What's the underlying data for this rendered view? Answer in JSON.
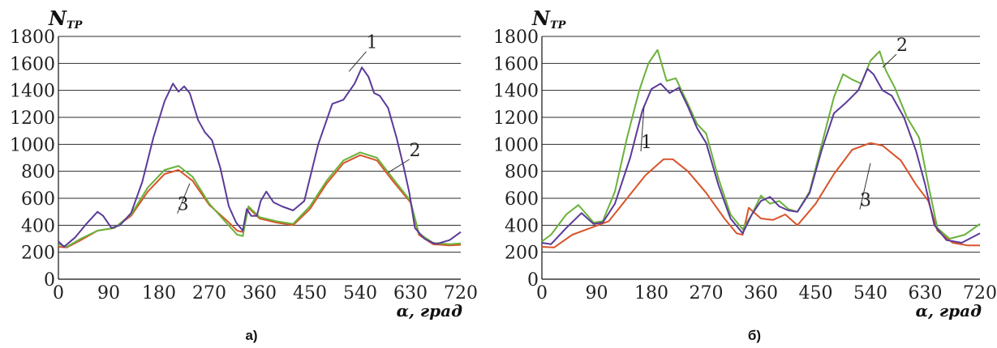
{
  "chart_data": [
    {
      "type": "line",
      "panel_label": "а)",
      "ylabel_main": "N",
      "ylabel_sub": "ТР",
      "xlabel": "α, град",
      "xlim": [
        0,
        720
      ],
      "ylim": [
        0,
        1800
      ],
      "grid": true,
      "xticks": [
        0,
        90,
        180,
        270,
        360,
        450,
        540,
        630,
        720
      ],
      "yticks": [
        0,
        200,
        400,
        600,
        800,
        1000,
        1200,
        1400,
        1600,
        1800
      ],
      "colors": {
        "1": "#5b3a99",
        "2": "#6ab23a",
        "3": "#d9542a"
      },
      "series": [
        {
          "label": "1",
          "x": [
            0,
            10,
            30,
            50,
            70,
            80,
            95,
            110,
            130,
            150,
            170,
            190,
            205,
            215,
            225,
            235,
            250,
            262,
            275,
            290,
            305,
            318,
            330,
            337,
            345,
            355,
            362,
            372,
            385,
            400,
            420,
            440,
            465,
            490,
            510,
            530,
            543,
            555,
            565,
            575,
            590,
            605,
            618,
            628,
            638,
            655,
            675,
            700,
            720
          ],
          "y": [
            280,
            240,
            310,
            410,
            500,
            470,
            380,
            400,
            490,
            720,
            1050,
            1320,
            1450,
            1390,
            1430,
            1380,
            1180,
            1090,
            1030,
            820,
            540,
            420,
            360,
            520,
            470,
            470,
            580,
            650,
            570,
            540,
            510,
            580,
            1000,
            1300,
            1330,
            1450,
            1570,
            1500,
            1380,
            1360,
            1270,
            1050,
            830,
            640,
            380,
            300,
            260,
            290,
            350
          ]
        },
        {
          "label": "2",
          "x": [
            0,
            15,
            40,
            70,
            100,
            130,
            160,
            190,
            215,
            240,
            270,
            300,
            320,
            330,
            340,
            360,
            390,
            420,
            450,
            480,
            510,
            540,
            570,
            600,
            630,
            645,
            670,
            700,
            720
          ],
          "y": [
            260,
            240,
            300,
            360,
            380,
            480,
            680,
            810,
            840,
            760,
            560,
            420,
            330,
            320,
            540,
            460,
            430,
            410,
            540,
            730,
            880,
            940,
            900,
            740,
            580,
            340,
            270,
            260,
            265
          ]
        },
        {
          "label": "3",
          "x": [
            0,
            15,
            40,
            70,
            100,
            130,
            160,
            190,
            215,
            240,
            270,
            300,
            320,
            330,
            340,
            360,
            390,
            420,
            450,
            480,
            510,
            540,
            570,
            600,
            630,
            645,
            670,
            700,
            720
          ],
          "y": [
            240,
            235,
            290,
            360,
            380,
            470,
            650,
            780,
            810,
            730,
            550,
            440,
            360,
            350,
            530,
            450,
            420,
            400,
            520,
            710,
            860,
            920,
            880,
            720,
            570,
            330,
            260,
            250,
            255
          ]
        }
      ],
      "annotations": [
        {
          "text": "1",
          "at_x": 520,
          "at_y": 1540,
          "label_x": 548,
          "label_y": 1700
        },
        {
          "text": "2",
          "at_x": 590,
          "at_y": 790,
          "label_x": 625,
          "label_y": 900
        },
        {
          "text": "3",
          "at_x": 235,
          "at_y": 710,
          "label_x": 210,
          "label_y": 500
        }
      ]
    },
    {
      "type": "line",
      "panel_label": "б)",
      "ylabel_main": "N",
      "ylabel_sub": "ТР",
      "xlabel": "α, град",
      "xlim": [
        0,
        720
      ],
      "ylim": [
        0,
        1800
      ],
      "grid": true,
      "xticks": [
        0,
        90,
        180,
        270,
        360,
        450,
        540,
        630,
        720
      ],
      "yticks": [
        0,
        200,
        400,
        600,
        800,
        1000,
        1200,
        1400,
        1600,
        1800
      ],
      "colors": {
        "1": "#5b3a99",
        "2": "#6ab23a",
        "3": "#d9542a"
      },
      "series": [
        {
          "label": "1",
          "x": [
            0,
            15,
            40,
            65,
            85,
            100,
            120,
            145,
            165,
            180,
            195,
            210,
            225,
            240,
            255,
            270,
            290,
            310,
            330,
            345,
            360,
            375,
            390,
            405,
            420,
            440,
            460,
            480,
            500,
            520,
            535,
            545,
            560,
            575,
            595,
            615,
            630,
            645,
            665,
            690,
            720
          ],
          "y": [
            270,
            260,
            380,
            490,
            410,
            420,
            560,
            900,
            1250,
            1410,
            1450,
            1380,
            1420,
            1280,
            1120,
            1010,
            700,
            450,
            340,
            480,
            580,
            610,
            540,
            510,
            500,
            640,
            960,
            1230,
            1310,
            1400,
            1560,
            1520,
            1400,
            1360,
            1200,
            950,
            700,
            400,
            290,
            270,
            340
          ]
        },
        {
          "label": "2",
          "x": [
            0,
            15,
            40,
            60,
            85,
            100,
            120,
            140,
            160,
            175,
            190,
            205,
            220,
            240,
            255,
            270,
            290,
            310,
            330,
            345,
            360,
            375,
            390,
            405,
            420,
            440,
            460,
            480,
            495,
            510,
            525,
            540,
            555,
            565,
            580,
            600,
            620,
            635,
            650,
            670,
            695,
            720
          ],
          "y": [
            280,
            330,
            480,
            550,
            420,
            430,
            650,
            1050,
            1400,
            1600,
            1700,
            1470,
            1490,
            1300,
            1150,
            1080,
            750,
            480,
            370,
            480,
            620,
            560,
            580,
            520,
            500,
            650,
            1000,
            1350,
            1520,
            1480,
            1450,
            1620,
            1690,
            1550,
            1420,
            1200,
            1050,
            700,
            380,
            300,
            330,
            410
          ]
        },
        {
          "label": "3",
          "x": [
            0,
            20,
            50,
            80,
            110,
            140,
            170,
            200,
            215,
            240,
            270,
            300,
            320,
            330,
            340,
            360,
            380,
            400,
            420,
            450,
            480,
            510,
            540,
            560,
            590,
            615,
            635,
            650,
            675,
            700,
            720
          ],
          "y": [
            240,
            235,
            330,
            380,
            430,
            600,
            770,
            890,
            890,
            800,
            640,
            450,
            340,
            330,
            530,
            450,
            440,
            480,
            400,
            560,
            780,
            960,
            1010,
            990,
            880,
            700,
            580,
            360,
            270,
            250,
            250
          ]
        }
      ],
      "annotations": [
        {
          "text": "1",
          "at_x": 168,
          "at_y": 1290,
          "label_x": 160,
          "label_y": 960
        },
        {
          "text": "2",
          "at_x": 560,
          "at_y": 1570,
          "label_x": 580,
          "label_y": 1680
        },
        {
          "text": "3",
          "at_x": 540,
          "at_y": 860,
          "label_x": 520,
          "label_y": 530
        }
      ]
    }
  ]
}
